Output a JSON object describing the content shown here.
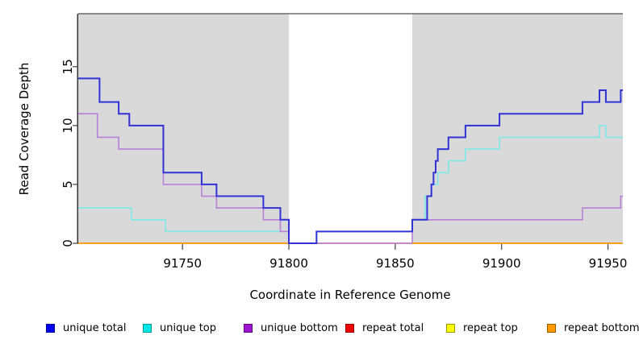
{
  "chart": {
    "x_axis": {
      "label": "Coordinate in Reference Genome",
      "ticks": [
        91750,
        91800,
        91850,
        91900,
        91950
      ]
    },
    "y_axis": {
      "label": "Read Coverage Depth",
      "ticks": [
        0,
        5,
        10,
        15
      ]
    },
    "shaded_region_color": "#d9d9d9",
    "axis_color": "#000000",
    "tick_color": "#404040",
    "top_border_color": "#4f4f4f"
  },
  "chart_data": {
    "type": "line",
    "title": "",
    "xlabel": "Coordinate in Reference Genome",
    "ylabel": "Read Coverage Depth",
    "xlim": [
      91701,
      91957
    ],
    "ylim": [
      0,
      19.5
    ],
    "grid": false,
    "legend_position": "bottom",
    "step_style": "post",
    "shaded_regions": [
      [
        91701,
        91800
      ],
      [
        91858,
        91957
      ]
    ],
    "series": [
      {
        "name": "repeat top",
        "color": "#ffff33",
        "width": 1.6,
        "segments": [
          [
            [
              91701,
              0
            ],
            [
              91957,
              0
            ]
          ]
        ]
      },
      {
        "name": "repeat total",
        "color": "#d75e79",
        "width": 1.4,
        "segments": [
          [
            [
              91701,
              0
            ],
            [
              91957,
              0
            ]
          ]
        ]
      },
      {
        "name": "unique top",
        "color": "#7de8e8",
        "width": 1.6,
        "segments": [
          [
            [
              91701,
              3
            ],
            [
              91726,
              2
            ],
            [
              91742,
              1
            ],
            [
              91800,
              0
            ],
            [
              91813,
              1
            ],
            [
              91858,
              2
            ],
            [
              91864,
              4
            ],
            [
              91867,
              5
            ],
            [
              91870,
              6
            ],
            [
              91875,
              7
            ],
            [
              91883,
              8
            ],
            [
              91899,
              9
            ],
            [
              91946,
              10
            ],
            [
              91949,
              9
            ],
            [
              91957,
              9
            ]
          ]
        ]
      },
      {
        "name": "unique bottom",
        "color": "#b77fd9",
        "width": 1.6,
        "segments": [
          [
            [
              91701,
              11
            ],
            [
              91710,
              9
            ],
            [
              91720,
              8
            ],
            [
              91741,
              5
            ],
            [
              91759,
              4
            ],
            [
              91766,
              3
            ],
            [
              91788,
              2
            ],
            [
              91796,
              1
            ],
            [
              91800,
              0
            ],
            [
              91858,
              2
            ],
            [
              91938,
              3
            ],
            [
              91956,
              4
            ],
            [
              91957,
              4
            ]
          ]
        ]
      },
      {
        "name": "repeat bottom",
        "color": "#ff9d14",
        "width": 1.8,
        "segments": [
          [
            [
              91701,
              0
            ],
            [
              91800,
              0
            ]
          ],
          [
            [
              91858,
              0
            ],
            [
              91957,
              0
            ]
          ]
        ]
      },
      {
        "name": "unique total",
        "color": "#3032d6",
        "width": 2,
        "segments": [
          [
            [
              91701,
              14
            ],
            [
              91711,
              12
            ],
            [
              91720,
              11
            ],
            [
              91725,
              10
            ],
            [
              91741,
              6
            ],
            [
              91759,
              5
            ],
            [
              91766,
              4
            ],
            [
              91788,
              3
            ],
            [
              91796,
              2
            ],
            [
              91800,
              0
            ],
            [
              91813,
              1
            ],
            [
              91858,
              2
            ],
            [
              91865,
              4
            ],
            [
              91867,
              5
            ],
            [
              91868,
              6
            ],
            [
              91869,
              7
            ],
            [
              91870,
              8
            ],
            [
              91875,
              9
            ],
            [
              91883,
              10
            ],
            [
              91899,
              11
            ],
            [
              91938,
              12
            ],
            [
              91946,
              13
            ],
            [
              91949,
              12
            ],
            [
              91956,
              13
            ],
            [
              91957,
              13
            ]
          ]
        ]
      }
    ]
  },
  "legend": {
    "items": [
      {
        "label": "unique total",
        "fill": "#0000ee",
        "border": "#000099"
      },
      {
        "label": "unique top",
        "fill": "#00e6e6",
        "border": "#009999"
      },
      {
        "label": "unique bottom",
        "fill": "#9d13cf",
        "border": "#5c0b7a"
      },
      {
        "label": "repeat total",
        "fill": "#ee0000",
        "border": "#990000"
      },
      {
        "label": "repeat top",
        "fill": "#ffff00",
        "border": "#999900"
      },
      {
        "label": "repeat bottom",
        "fill": "#ff9900",
        "border": "#995c00"
      }
    ]
  }
}
